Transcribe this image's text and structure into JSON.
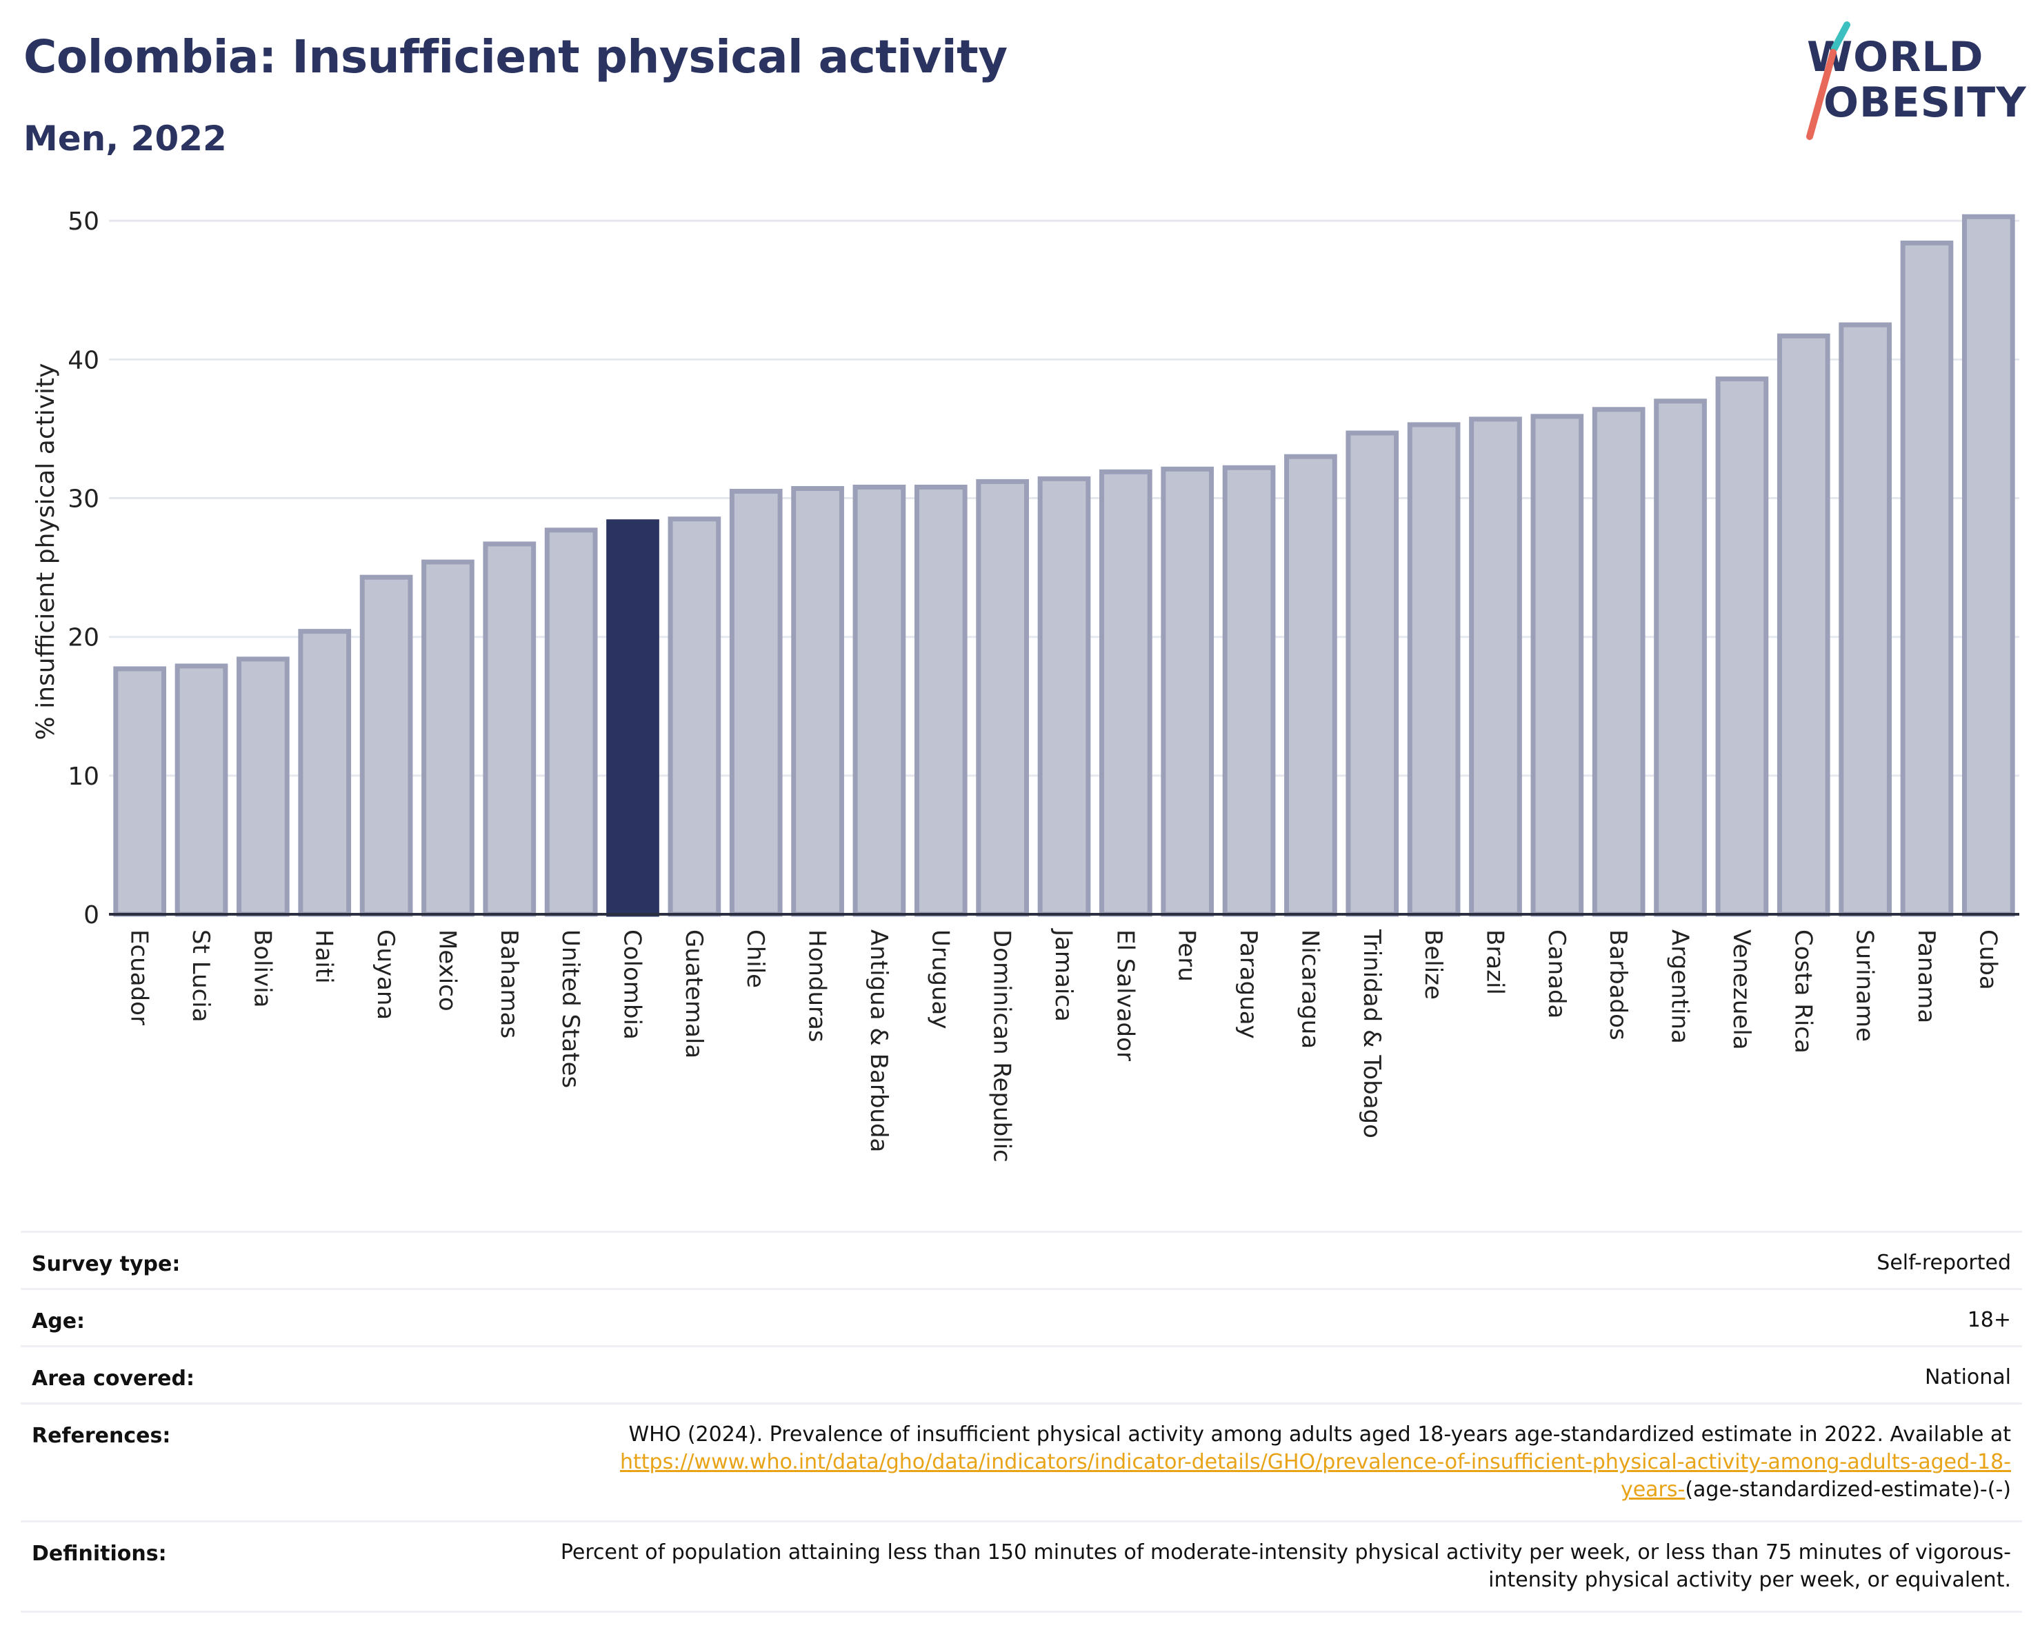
{
  "header": {
    "title": "Colombia: Insufficient physical activity",
    "subtitle": "Men, 2022"
  },
  "logo": {
    "line1": "WORLD",
    "line2": "OBESITY",
    "color": "#2b3461",
    "accent_teal": "#3bbfbf",
    "accent_coral": "#e8685a"
  },
  "colors": {
    "bar_default": "#c0c3d1",
    "bar_border": "#9ba0b8",
    "bar_highlight": "#2b3461",
    "grid": "#e6e8ef",
    "axis": "#2b2f3f"
  },
  "chart_data": {
    "type": "bar",
    "ylabel": "% insufficient physical activity",
    "ylim": [
      0,
      52
    ],
    "yticks": [
      0,
      10,
      20,
      30,
      40,
      50
    ],
    "grid": true,
    "highlight": "Colombia",
    "categories": [
      "Ecuador",
      "St Lucia",
      "Bolivia",
      "Haiti",
      "Guyana",
      "Mexico",
      "Bahamas",
      "United States",
      "Colombia",
      "Guatemala",
      "Chile",
      "Honduras",
      "Antigua & Barbuda",
      "Uruguay",
      "Dominican Republic",
      "Jamaica",
      "El Salvador",
      "Peru",
      "Paraguay",
      "Nicaragua",
      "Trinidad & Tobago",
      "Belize",
      "Brazil",
      "Canada",
      "Barbados",
      "Argentina",
      "Venezuela",
      "Costa Rica",
      "Suriname",
      "Panama",
      "Cuba"
    ],
    "values": [
      17.7,
      17.9,
      18.4,
      20.4,
      24.3,
      25.4,
      26.7,
      27.7,
      28.3,
      28.5,
      30.5,
      30.7,
      30.8,
      30.8,
      31.2,
      31.4,
      31.9,
      32.1,
      32.2,
      33.0,
      34.7,
      35.3,
      35.7,
      35.9,
      36.4,
      37.0,
      38.6,
      41.7,
      42.5,
      48.4,
      50.3
    ]
  },
  "info": {
    "survey_type": {
      "label": "Survey type:",
      "value": "Self-reported"
    },
    "age": {
      "label": "Age:",
      "value": "18+"
    },
    "area": {
      "label": "Area covered:",
      "value": "National"
    },
    "references": {
      "label": "References:",
      "text": "WHO (2024). Prevalence of insufficient physical activity among adults aged 18-years age-standardized estimate in 2022. Available at",
      "link": "https://www.who.int/data/gho/data/indicators/indicator-details/GHO/prevalence-of-insufficient-physical-activity-among-adults-aged-18-years-",
      "suffix": "(age-standardized-estimate)-(-)"
    },
    "definitions": {
      "label": "Definitions:",
      "value": "Percent of population attaining less than 150 minutes of moderate-intensity physical activity per week, or less than 75 minutes of vigorous-intensity physical activity per week, or equivalent."
    }
  }
}
